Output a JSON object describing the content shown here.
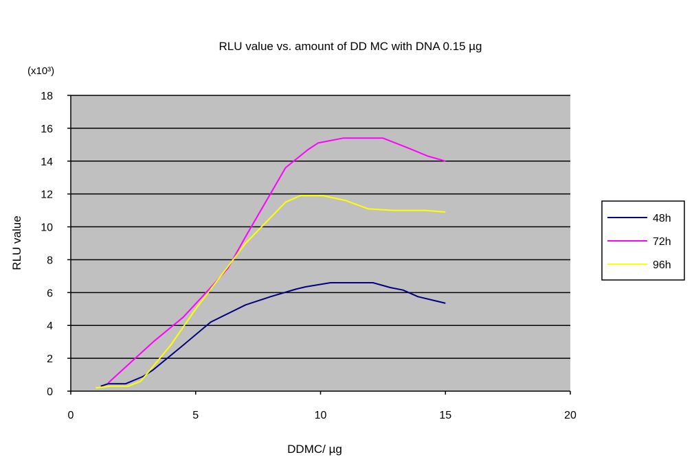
{
  "chart_data": {
    "type": "line",
    "title": "RLU value vs. amount of DD MC with DNA 0.15 µg",
    "xlabel": "DDMC/ µg",
    "ylabel": "RLU value",
    "y_multiplier_label": "(x10³)",
    "xlim": [
      0,
      20
    ],
    "ylim": [
      0,
      18
    ],
    "x_ticks": [
      0,
      5,
      10,
      15,
      20
    ],
    "y_ticks": [
      0,
      2,
      4,
      6,
      8,
      10,
      12,
      14,
      16,
      18
    ],
    "grid": "horizontal",
    "plot_background": "#c0c0c0",
    "legend_position": "right",
    "series": [
      {
        "name": "48h",
        "color": "#000080",
        "points": [
          [
            1.2,
            0.3
          ],
          [
            1.5,
            0.45
          ],
          [
            2.2,
            0.45
          ],
          [
            2.9,
            0.9
          ],
          [
            3.3,
            1.3
          ],
          [
            4.5,
            2.8
          ],
          [
            5.6,
            4.2
          ],
          [
            7.0,
            5.25
          ],
          [
            8.0,
            5.75
          ],
          [
            9.0,
            6.2
          ],
          [
            9.4,
            6.35
          ],
          [
            10.4,
            6.6
          ],
          [
            12.1,
            6.6
          ],
          [
            12.8,
            6.3
          ],
          [
            13.3,
            6.15
          ],
          [
            13.9,
            5.75
          ],
          [
            15.0,
            5.35
          ]
        ]
      },
      {
        "name": "72h",
        "color": "#ff00ff",
        "points": [
          [
            1.5,
            0.5
          ],
          [
            3.3,
            3.0
          ],
          [
            4.5,
            4.5
          ],
          [
            5.6,
            6.3
          ],
          [
            6.3,
            7.5
          ],
          [
            7.0,
            9.4
          ],
          [
            8.6,
            13.6
          ],
          [
            9.5,
            14.7
          ],
          [
            9.9,
            15.1
          ],
          [
            10.9,
            15.4
          ],
          [
            12.5,
            15.4
          ],
          [
            13.5,
            14.8
          ],
          [
            14.3,
            14.3
          ],
          [
            15.0,
            14.0
          ]
        ]
      },
      {
        "name": "96h",
        "color": "#ffff00",
        "points": [
          [
            1.0,
            0.2
          ],
          [
            1.6,
            0.3
          ],
          [
            2.3,
            0.3
          ],
          [
            2.8,
            0.6
          ],
          [
            4.0,
            2.8
          ],
          [
            5.0,
            5.0
          ],
          [
            6.0,
            7.0
          ],
          [
            7.0,
            9.0
          ],
          [
            8.6,
            11.5
          ],
          [
            9.2,
            11.9
          ],
          [
            10.1,
            11.9
          ],
          [
            11.0,
            11.6
          ],
          [
            11.9,
            11.1
          ],
          [
            12.9,
            11.0
          ],
          [
            14.2,
            11.0
          ],
          [
            15.0,
            10.9
          ]
        ]
      }
    ]
  }
}
